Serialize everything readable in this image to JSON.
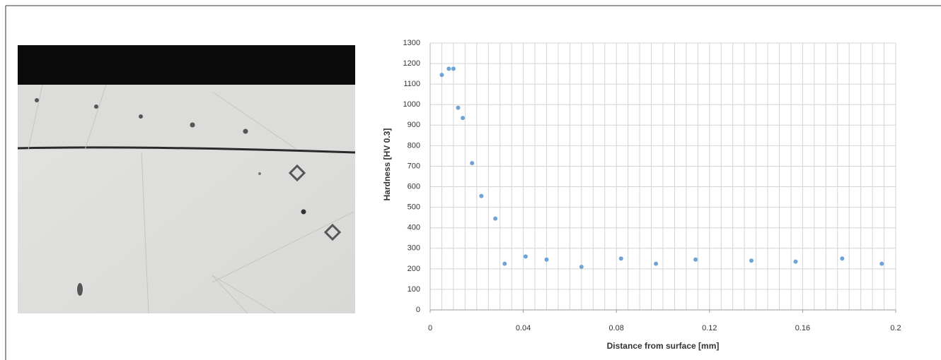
{
  "chart_data": {
    "type": "scatter",
    "xlabel": "Distance from surface [mm]",
    "ylabel": "Hardness [HV 0.3]",
    "x": [
      0.005,
      0.008,
      0.01,
      0.012,
      0.014,
      0.018,
      0.022,
      0.028,
      0.032,
      0.041,
      0.05,
      0.065,
      0.082,
      0.097,
      0.114,
      0.138,
      0.157,
      0.177,
      0.194
    ],
    "values": [
      1145,
      1175,
      1175,
      985,
      935,
      715,
      555,
      445,
      225,
      260,
      245,
      210,
      250,
      225,
      245,
      240,
      235,
      250,
      225
    ],
    "color": "#6fa3d6",
    "xlim": [
      0,
      0.2
    ],
    "ylim": [
      0,
      1300
    ],
    "xticks": [
      0,
      0.04,
      0.08,
      0.12,
      0.16,
      0.2
    ],
    "yticks": [
      0,
      100,
      200,
      300,
      400,
      500,
      600,
      700,
      800,
      900,
      1000,
      1100,
      1200,
      1300
    ],
    "xgrid": [
      0,
      0.005,
      0.01,
      0.015,
      0.02,
      0.025,
      0.03,
      0.035,
      0.04,
      0.045,
      0.05,
      0.055,
      0.06,
      0.065,
      0.07,
      0.075,
      0.08,
      0.085,
      0.09,
      0.095,
      0.1,
      0.105,
      0.11,
      0.115,
      0.12,
      0.125,
      0.13,
      0.135,
      0.14,
      0.145,
      0.15,
      0.155,
      0.16,
      0.165,
      0.17,
      0.175,
      0.18,
      0.185,
      0.19,
      0.195,
      0.2
    ],
    "grid": true
  }
}
